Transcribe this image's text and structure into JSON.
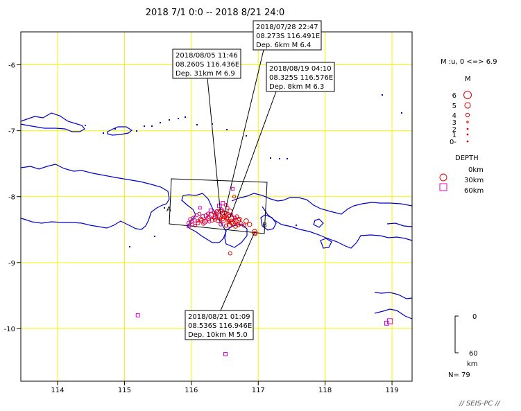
{
  "title": "2018 7/1 0:0 -- 2018 8/21 24:0",
  "magnitude_range": "M :u, 0 <=> 6.9",
  "legend_m_header": "M",
  "legend_m_labels": [
    "6",
    "5",
    "4",
    "3",
    "2",
    "1",
    "0-"
  ],
  "legend_depth_header": "DEPTH",
  "legend_depth_labels": [
    "0km",
    "30km",
    "60km"
  ],
  "depth_scale": {
    "top": "0",
    "bottom": "60",
    "unit": "km"
  },
  "count": "N= 79",
  "credit": "// SEIS-PC //",
  "section_labels": {
    "a": "A",
    "b": "B"
  },
  "map": {
    "lon_range": [
      113.45,
      119.3
    ],
    "lat_range": [
      -10.8,
      -5.5
    ],
    "lon_ticks": [
      114,
      115,
      116,
      117,
      118,
      119
    ],
    "lat_ticks": [
      -6,
      -7,
      -8,
      -9,
      -10
    ],
    "lon_tick_labels": [
      "114",
      "115",
      "116",
      "117",
      "118",
      "119"
    ],
    "lat_tick_labels": [
      "-6",
      "-7",
      "-8",
      "-9",
      "-10"
    ],
    "grid_color": "#f5f500",
    "coast_color": "#0000cc"
  },
  "annotations": [
    {
      "line1": "2018/07/28 22:47",
      "line2": "08.273S  116.491E",
      "line3": "Dep. 6km    M 6.4",
      "lon": 116.491,
      "lat": -8.273
    },
    {
      "line1": "2018/08/05 11:46",
      "line2": "08.260S  116.436E",
      "line3": "Dep. 31km    M 6.9",
      "lon": 116.436,
      "lat": -8.26
    },
    {
      "line1": "2018/08/19 04:10",
      "line2": "08.325S  116.576E",
      "line3": "Dep. 8km    M 6.3",
      "lon": 116.576,
      "lat": -8.325
    },
    {
      "line1": "2018/08/21 01:09",
      "line2": "08.536S  116.946E",
      "line3": "Dep. 10km    M 5.0",
      "lon": 116.946,
      "lat": -8.536
    }
  ],
  "events": [
    {
      "lon": 116.491,
      "lat": -8.273,
      "depth": 6,
      "mag": 6.4
    },
    {
      "lon": 116.436,
      "lat": -8.26,
      "depth": 31,
      "mag": 6.9
    },
    {
      "lon": 116.576,
      "lat": -8.325,
      "depth": 8,
      "mag": 6.3
    },
    {
      "lon": 116.946,
      "lat": -8.536,
      "depth": 10,
      "mag": 5.0
    },
    {
      "lon": 116.3,
      "lat": -8.28,
      "depth": 12,
      "mag": 5.2
    },
    {
      "lon": 116.36,
      "lat": -8.3,
      "depth": 10,
      "mag": 5.0
    },
    {
      "lon": 116.42,
      "lat": -8.3,
      "depth": 14,
      "mag": 5.4
    },
    {
      "lon": 116.55,
      "lat": -8.28,
      "depth": 10,
      "mag": 5.0
    },
    {
      "lon": 116.6,
      "lat": -8.34,
      "depth": 12,
      "mag": 5.3
    },
    {
      "lon": 116.62,
      "lat": -8.4,
      "depth": 10,
      "mag": 5.1
    },
    {
      "lon": 116.66,
      "lat": -8.37,
      "depth": 10,
      "mag": 5.0
    },
    {
      "lon": 116.7,
      "lat": -8.36,
      "depth": 11,
      "mag": 4.9
    },
    {
      "lon": 116.82,
      "lat": -8.37,
      "depth": 10,
      "mag": 4.8
    },
    {
      "lon": 116.87,
      "lat": -8.42,
      "depth": 12,
      "mag": 4.7
    },
    {
      "lon": 116.25,
      "lat": -8.33,
      "depth": 10,
      "mag": 4.8
    },
    {
      "lon": 116.2,
      "lat": -8.38,
      "depth": 12,
      "mag": 4.9
    },
    {
      "lon": 116.15,
      "lat": -8.36,
      "depth": 15,
      "mag": 4.5
    },
    {
      "lon": 116.48,
      "lat": -8.36,
      "depth": 10,
      "mag": 4.7
    },
    {
      "lon": 116.53,
      "lat": -8.32,
      "depth": 8,
      "mag": 4.5
    },
    {
      "lon": 116.58,
      "lat": -8.22,
      "depth": 10,
      "mag": 4.6
    },
    {
      "lon": 116.64,
      "lat": -8.0,
      "depth": 12,
      "mag": 4.0
    },
    {
      "lon": 116.52,
      "lat": -8.13,
      "depth": 14,
      "mag": 4.2
    },
    {
      "lon": 116.45,
      "lat": -8.2,
      "depth": 20,
      "mag": 4.5
    },
    {
      "lon": 116.52,
      "lat": -8.44,
      "depth": 18,
      "mag": 4.3
    },
    {
      "lon": 116.68,
      "lat": -8.3,
      "depth": 14,
      "mag": 4.2
    },
    {
      "lon": 116.74,
      "lat": -8.41,
      "depth": 12,
      "mag": 4.6
    },
    {
      "lon": 116.4,
      "lat": -8.37,
      "depth": 16,
      "mag": 4.4
    },
    {
      "lon": 116.33,
      "lat": -8.24,
      "depth": 18,
      "mag": 4.1
    },
    {
      "lon": 116.95,
      "lat": -8.56,
      "depth": 12,
      "mag": 4.6
    },
    {
      "lon": 116.58,
      "lat": -8.86,
      "depth": 15,
      "mag": 4.2
    },
    {
      "lon": 116.1,
      "lat": -8.4,
      "depth": 25,
      "mag": 4.3
    },
    {
      "lon": 116.14,
      "lat": -8.34,
      "depth": 28,
      "mag": 4.5
    },
    {
      "lon": 116.17,
      "lat": -8.3,
      "depth": 30,
      "mag": 4.4
    },
    {
      "lon": 116.22,
      "lat": -8.29,
      "depth": 32,
      "mag": 4.6
    },
    {
      "lon": 116.27,
      "lat": -8.31,
      "depth": 30,
      "mag": 4.3
    },
    {
      "lon": 116.05,
      "lat": -8.36,
      "depth": 35,
      "mag": 4.2
    },
    {
      "lon": 116.0,
      "lat": -8.38,
      "depth": 40,
      "mag": 4.3
    },
    {
      "lon": 116.03,
      "lat": -8.32,
      "depth": 38,
      "mag": 4.1
    },
    {
      "lon": 116.08,
      "lat": -8.28,
      "depth": 36,
      "mag": 4.2
    },
    {
      "lon": 115.96,
      "lat": -8.4,
      "depth": 45,
      "mag": 4.4
    },
    {
      "lon": 115.98,
      "lat": -8.34,
      "depth": 42,
      "mag": 4.0
    },
    {
      "lon": 116.12,
      "lat": -8.26,
      "depth": 40,
      "mag": 4.1
    },
    {
      "lon": 116.38,
      "lat": -8.27,
      "depth": 36,
      "mag": 4.2
    },
    {
      "lon": 116.42,
      "lat": -8.14,
      "depth": 50,
      "mag": 4.4
    },
    {
      "lon": 116.47,
      "lat": -8.1,
      "depth": 55,
      "mag": 4.3
    },
    {
      "lon": 116.44,
      "lat": -8.22,
      "depth": 45,
      "mag": 4.5
    },
    {
      "lon": 116.34,
      "lat": -8.32,
      "depth": 40,
      "mag": 4.1
    },
    {
      "lon": 116.13,
      "lat": -8.17,
      "depth": 60,
      "mag": 3.8
    },
    {
      "lon": 116.29,
      "lat": -8.21,
      "depth": 50,
      "mag": 4.2
    },
    {
      "lon": 116.6,
      "lat": -8.27,
      "depth": 35,
      "mag": 4.0
    },
    {
      "lon": 116.65,
      "lat": -8.32,
      "depth": 40,
      "mag": 4.1
    },
    {
      "lon": 116.62,
      "lat": -7.88,
      "depth": 60,
      "mag": 3.9
    },
    {
      "lon": 115.96,
      "lat": -8.45,
      "depth": 50,
      "mag": 4.0
    },
    {
      "lon": 116.06,
      "lat": -8.44,
      "depth": 45,
      "mag": 3.9
    },
    {
      "lon": 116.22,
      "lat": -8.36,
      "depth": 42,
      "mag": 4.1
    },
    {
      "lon": 115.2,
      "lat": -9.8,
      "depth": 60,
      "mag": 4.2
    },
    {
      "lon": 116.51,
      "lat": -10.39,
      "depth": 60,
      "mag": 4.2
    },
    {
      "lon": 118.92,
      "lat": -9.92,
      "depth": 60,
      "mag": 4.5
    },
    {
      "lon": 118.97,
      "lat": -9.89,
      "depth": 60,
      "mag": 5.0
    },
    {
      "lon": 116.44,
      "lat": -8.42,
      "depth": 30,
      "mag": 4.3
    },
    {
      "lon": 116.72,
      "lat": -8.34,
      "depth": 28,
      "mag": 4.4
    },
    {
      "lon": 116.31,
      "lat": -8.36,
      "depth": 22,
      "mag": 4.2
    },
    {
      "lon": 116.56,
      "lat": -8.38,
      "depth": 26,
      "mag": 4.5
    },
    {
      "lon": 116.49,
      "lat": -8.3,
      "depth": 24,
      "mag": 4.6
    },
    {
      "lon": 116.18,
      "lat": -8.41,
      "depth": 30,
      "mag": 4.2
    },
    {
      "lon": 116.25,
      "lat": -8.26,
      "depth": 30,
      "mag": 4.3
    },
    {
      "lon": 116.57,
      "lat": -8.43,
      "depth": 15,
      "mag": 4.8
    },
    {
      "lon": 116.66,
      "lat": -8.45,
      "depth": 12,
      "mag": 4.5
    },
    {
      "lon": 116.79,
      "lat": -8.44,
      "depth": 13,
      "mag": 4.3
    },
    {
      "lon": 116.5,
      "lat": -8.25,
      "depth": 9,
      "mag": 4.4
    },
    {
      "lon": 116.35,
      "lat": -8.35,
      "depth": 20,
      "mag": 4.0
    },
    {
      "lon": 116.6,
      "lat": -8.38,
      "depth": 10,
      "mag": 5.2
    },
    {
      "lon": 116.46,
      "lat": -8.33,
      "depth": 11,
      "mag": 5.1
    },
    {
      "lon": 116.7,
      "lat": -8.43,
      "depth": 10,
      "mag": 4.4
    },
    {
      "lon": 116.38,
      "lat": -8.22,
      "depth": 26,
      "mag": 4.1
    },
    {
      "lon": 116.09,
      "lat": -8.37,
      "depth": 32,
      "mag": 4.0
    },
    {
      "lon": 116.01,
      "lat": -8.42,
      "depth": 38,
      "mag": 4.1
    },
    {
      "lon": 116.27,
      "lat": -8.38,
      "depth": 36,
      "mag": 4.0
    },
    {
      "lon": 116.54,
      "lat": -8.17,
      "depth": 44,
      "mag": 4.1
    }
  ],
  "colors": {
    "shallow": "#e00000",
    "mid": "#d0007a",
    "deep": "#d800d8",
    "frame": "#000000",
    "background": "#ffffff"
  }
}
